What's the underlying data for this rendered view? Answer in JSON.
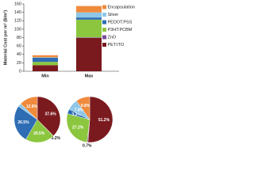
{
  "chart_data": [
    {
      "type": "bar",
      "stacked": true,
      "y_label": "Material Cost per m² ($/m²)",
      "categories": [
        "Min",
        "Max"
      ],
      "series": [
        {
          "name": "PET:ITO",
          "color": "#7b1a1e",
          "values": [
            14.3,
            79.4
          ]
        },
        {
          "name": "ZnO",
          "color": "#7a4a9a",
          "values": [
            0.1,
            1.1
          ]
        },
        {
          "name": "P3HT:PCBM",
          "color": "#8cc63f",
          "values": [
            7.8,
            42.2
          ]
        },
        {
          "name": "PEDOT:PSS",
          "color": "#2e6db4",
          "values": [
            10.1,
            5.1
          ]
        },
        {
          "name": "Silver",
          "color": "#8ec7e8",
          "values": [
            0.9,
            12.1
          ]
        },
        {
          "name": "Encapsulation",
          "color": "#f08a3c",
          "values": [
            4.9,
            15.2
          ]
        }
      ],
      "ylim": [
        0,
        160
      ],
      "yticks": [
        0,
        20,
        40,
        60,
        80,
        100,
        120,
        140,
        160
      ],
      "legend": "upper right"
    },
    {
      "type": "pie",
      "colors": [
        "#7b1a1e",
        "#7a4a9a",
        "#8cc63f",
        "#2e6db4",
        "#8ec7e8",
        "#f08a3c"
      ],
      "values": [
        37.6,
        0.2,
        20.5,
        26.5,
        2.3,
        12.9
      ],
      "value_labels": [
        "37.6%",
        "0.2%",
        "20.5%",
        "26.5%",
        null,
        "12.9%"
      ]
    },
    {
      "type": "pie",
      "colors": [
        "#7b1a1e",
        "#7a4a9a",
        "#8cc63f",
        "#2e6db4",
        "#8ec7e8",
        "#f08a3c"
      ],
      "values": [
        51.2,
        0.7,
        27.2,
        3.3,
        7.8,
        9.8
      ],
      "value_labels": [
        "51.2%",
        "0.7%",
        "27.2%",
        "3.3%",
        "7.8%",
        "9.8%"
      ]
    }
  ]
}
